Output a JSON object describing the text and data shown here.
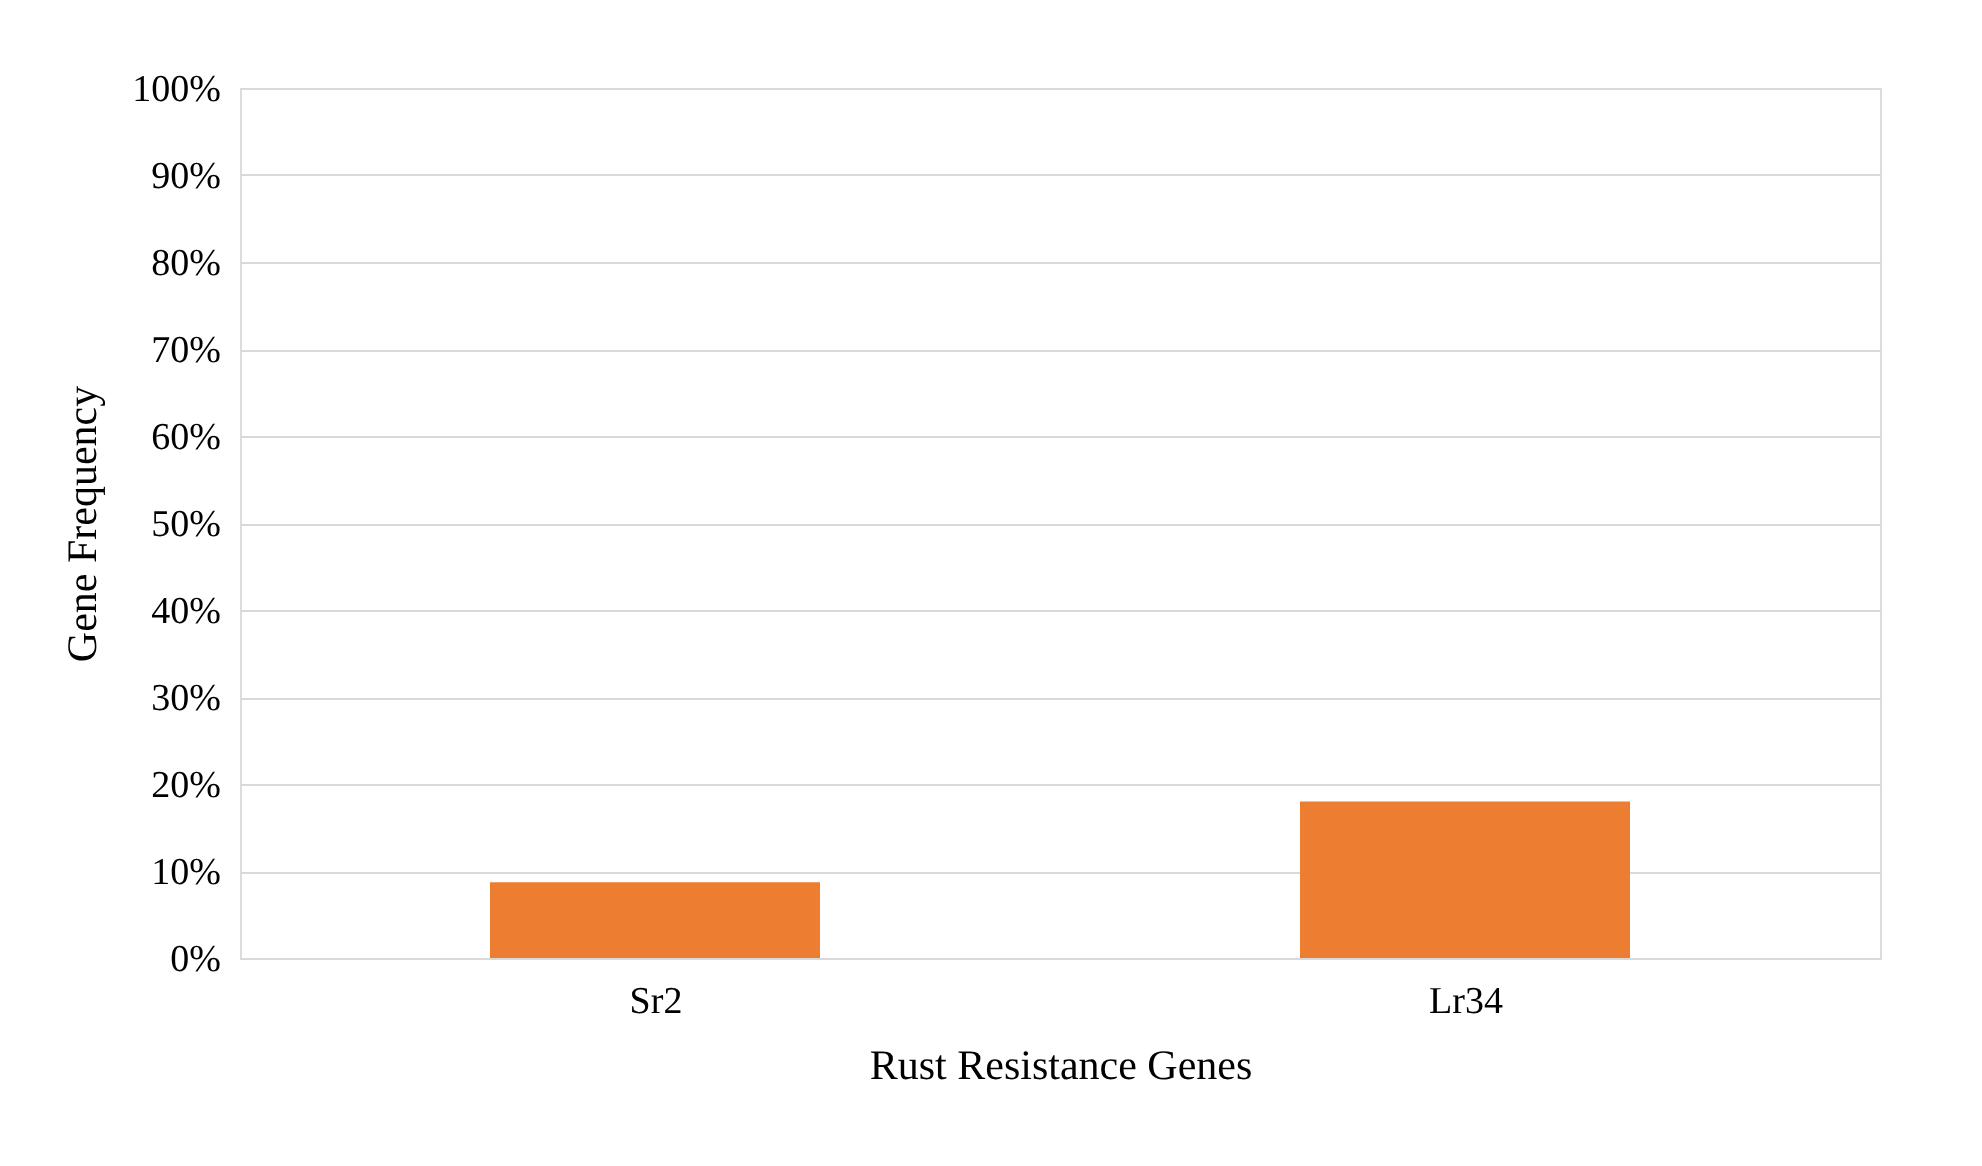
{
  "chart_data": {
    "type": "bar",
    "xlabel": "Rust Resistance Genes",
    "ylabel": "Gene Frequency",
    "categories": [
      "Sr2",
      "Lr34"
    ],
    "values": [
      8.7,
      18
    ],
    "color": "#ed7d31",
    "ylim": [
      0,
      100
    ],
    "yticks": [
      {
        "value": 0,
        "label": "0%"
      },
      {
        "value": 10,
        "label": "10%"
      },
      {
        "value": 20,
        "label": "20%"
      },
      {
        "value": 30,
        "label": "30%"
      },
      {
        "value": 40,
        "label": "40%"
      },
      {
        "value": 50,
        "label": "50%"
      },
      {
        "value": 60,
        "label": "60%"
      },
      {
        "value": 70,
        "label": "70%"
      },
      {
        "value": 80,
        "label": "80%"
      },
      {
        "value": 90,
        "label": "90%"
      },
      {
        "value": 100,
        "label": "100%"
      }
    ],
    "grid": "y"
  }
}
